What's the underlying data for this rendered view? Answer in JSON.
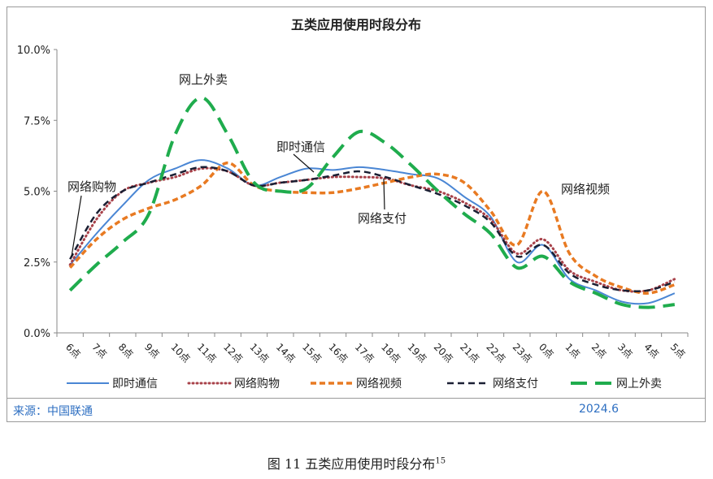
{
  "chart_data": {
    "type": "line",
    "title": "五类应用使用时段分布",
    "categories": [
      "6点",
      "7点",
      "8点",
      "9点",
      "10点",
      "11点",
      "12点",
      "13点",
      "14点",
      "15点",
      "16点",
      "17点",
      "18点",
      "19点",
      "20点",
      "21点",
      "22点",
      "23点",
      "0点",
      "1点",
      "2点",
      "3点",
      "4点",
      "5点"
    ],
    "y_ticks": [
      "0.0%",
      "2.5%",
      "5.0%",
      "7.5%",
      "10.0%"
    ],
    "ylim": [
      0,
      10
    ],
    "grid": false,
    "legend_position": "bottom",
    "series": [
      {
        "name": "即时通信",
        "color": "#4a86d4",
        "style": "solid",
        "values": [
          2.4,
          3.5,
          4.5,
          5.4,
          5.8,
          6.1,
          5.8,
          5.2,
          5.5,
          5.8,
          5.75,
          5.85,
          5.75,
          5.6,
          5.45,
          4.8,
          4.1,
          2.5,
          3.1,
          1.9,
          1.5,
          1.1,
          1.05,
          1.4
        ]
      },
      {
        "name": "网络购物",
        "color": "#a8424a",
        "style": "dotted",
        "values": [
          2.4,
          4.0,
          5.0,
          5.3,
          5.5,
          5.8,
          5.7,
          5.2,
          5.3,
          5.4,
          5.5,
          5.5,
          5.45,
          5.2,
          5.0,
          4.6,
          4.0,
          2.8,
          3.3,
          2.2,
          1.8,
          1.5,
          1.5,
          1.9
        ]
      },
      {
        "name": "网络视频",
        "color": "#e87a22",
        "style": "dashed",
        "values": [
          2.3,
          3.3,
          4.0,
          4.4,
          4.7,
          5.2,
          6.0,
          5.2,
          5.0,
          4.95,
          4.95,
          5.1,
          5.3,
          5.5,
          5.6,
          5.3,
          4.3,
          3.1,
          5.0,
          2.8,
          2.0,
          1.6,
          1.4,
          1.7
        ]
      },
      {
        "name": "网络支付",
        "color": "#1a1f33",
        "style": "dash",
        "values": [
          2.6,
          4.2,
          5.0,
          5.3,
          5.6,
          5.85,
          5.7,
          5.2,
          5.3,
          5.4,
          5.55,
          5.7,
          5.5,
          5.2,
          4.9,
          4.5,
          3.9,
          2.7,
          3.1,
          2.1,
          1.7,
          1.5,
          1.5,
          1.8
        ]
      },
      {
        "name": "网上外卖",
        "color": "#1fac4d",
        "style": "longdash",
        "values": [
          1.5,
          2.4,
          3.2,
          4.2,
          7.0,
          8.3,
          7.0,
          5.3,
          5.0,
          5.1,
          6.2,
          7.1,
          6.7,
          5.9,
          5.0,
          4.2,
          3.5,
          2.3,
          2.7,
          1.8,
          1.4,
          1.0,
          0.9,
          1.0
        ]
      }
    ],
    "annotations": [
      "网上外卖",
      "即时通信",
      "网络购物",
      "网络支付",
      "网络视频"
    ]
  },
  "source": "来源：中国联通",
  "date": "2024.6",
  "caption": {
    "prefix": "图  11    五类应用使用时段分布",
    "sup": "15"
  }
}
